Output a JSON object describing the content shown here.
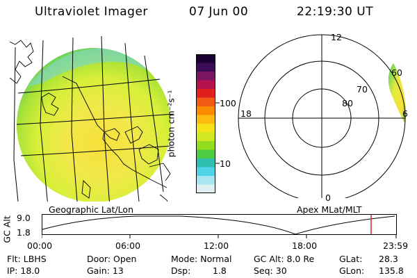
{
  "header": {
    "title": "Ultraviolet Imager",
    "date": "07 Jun 00",
    "time": "22:19:30 UT"
  },
  "colorbar": {
    "axis_label": "photon cm⁻²s⁻¹",
    "ticks": [
      "100",
      "10"
    ],
    "colors": [
      "#1a0030",
      "#3b0d57",
      "#7a1660",
      "#b4124f",
      "#e0201f",
      "#f05a12",
      "#fb8c00",
      "#fdbb10",
      "#f6e21a",
      "#cfe821",
      "#94dc1e",
      "#4ccb43",
      "#2fbfb0",
      "#4fd3e6",
      "#a7e6f0",
      "#dfeff2"
    ]
  },
  "left_map": {
    "caption": "Geographic Lat/Lon"
  },
  "right_polar": {
    "caption": "Apex MLat/MLT",
    "mlt_labels": [
      "12",
      "18",
      "6",
      "0"
    ],
    "lat_labels": [
      "60",
      "70",
      "80"
    ]
  },
  "timeline": {
    "axis_label": "GC Alt",
    "y_ticks": [
      "9.0",
      "1.8"
    ],
    "x_ticks": [
      "00:00",
      "06:00",
      "12:00",
      "18:00",
      "23:59"
    ],
    "marker_time": "22:19",
    "marker_color": "#e02020"
  },
  "info": {
    "filter": "Flt: LBHS",
    "ip": "IP: 18.0",
    "door": "Door: Open",
    "gain": "Gain: 13",
    "mode": "Mode: Normal",
    "dsp": "Dsp:",
    "dsp_value": "1.8",
    "gc_alt": "GC Alt: 8.0 Re",
    "seq": "Seq: 30",
    "glat": "GLat:",
    "glat_value": "28.3",
    "glon": "GLon:",
    "glon_value": "135.8"
  }
}
